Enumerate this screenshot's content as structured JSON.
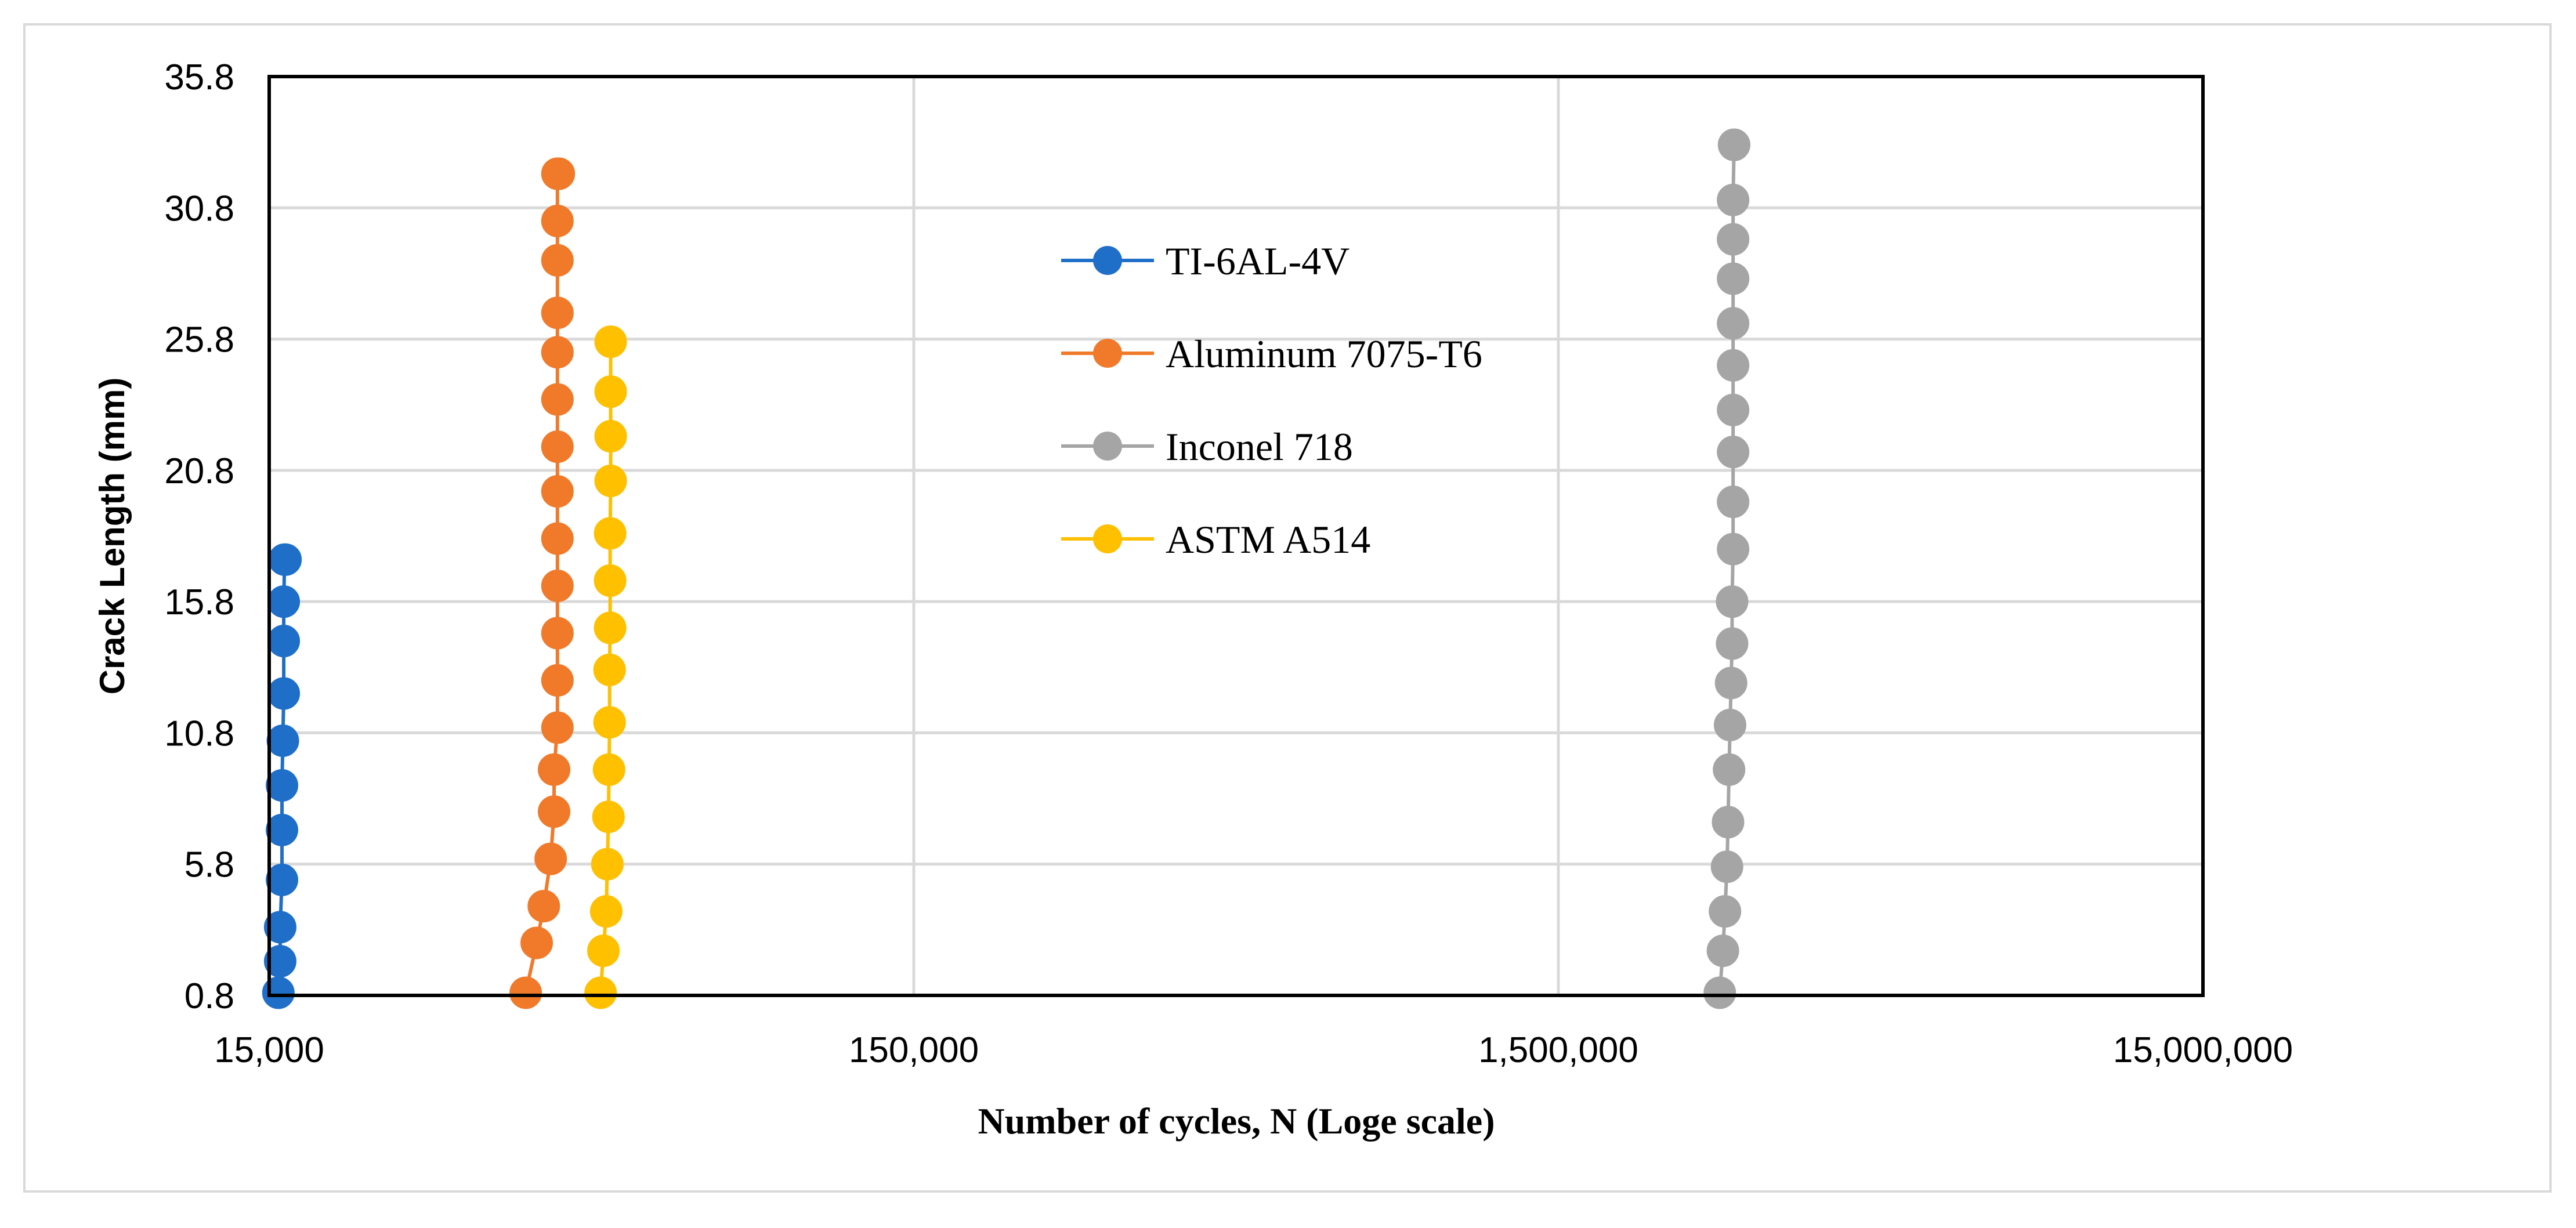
{
  "chart_data": {
    "type": "scatter",
    "title": "",
    "xlabel": "Number of cycles, N (Loge scale)",
    "ylabel": "Crack Length (mm)",
    "x_scale": "log",
    "xlim": [
      15000,
      15000000
    ],
    "ylim": [
      0.8,
      35.8
    ],
    "x_ticks": [
      15000,
      150000,
      1500000,
      15000000
    ],
    "x_tick_labels": [
      "15,000",
      "150,000",
      "1,500,000",
      "15,000,000"
    ],
    "y_ticks": [
      0.8,
      5.8,
      10.8,
      15.8,
      20.8,
      25.8,
      30.8,
      35.8
    ],
    "y_tick_labels": [
      "0.8",
      "5.8",
      "10.8",
      "15.8",
      "20.8",
      "25.8",
      "30.8",
      "35.8"
    ],
    "grid": true,
    "legend_position": "top-center",
    "series": [
      {
        "name": "TI-6AL-4V",
        "color": "#1f6fc9",
        "x": [
          15500,
          15600,
          15600,
          15700,
          15700,
          15700,
          15750,
          15800,
          15800,
          15800,
          15850,
          15900
        ],
        "y": [
          0.9,
          2.1,
          3.4,
          5.2,
          7.1,
          8.8,
          10.5,
          12.3,
          14.3,
          15.8,
          17.4,
          17.4
        ]
      },
      {
        "name": "Aluminum 7075-T6",
        "color": "#f07a2a",
        "x": [
          37500,
          39000,
          40000,
          41000,
          41500,
          41500,
          42000,
          42000,
          42000,
          42000,
          42000,
          42000,
          42000,
          42000,
          42000,
          42000,
          42000,
          42000,
          42000,
          42200,
          42200
        ],
        "y": [
          0.9,
          2.8,
          4.2,
          6.0,
          7.8,
          9.4,
          11.0,
          12.8,
          14.6,
          16.4,
          18.2,
          20.0,
          21.7,
          23.5,
          25.3,
          26.8,
          28.8,
          30.3,
          32.1,
          32.1,
          32.1
        ]
      },
      {
        "name": "Inconel 718",
        "color": "#a5a5a5",
        "x": [
          2670000,
          2700000,
          2720000,
          2740000,
          2750000,
          2760000,
          2770000,
          2780000,
          2790000,
          2790000,
          2800000,
          2800000,
          2800000,
          2800000,
          2800000,
          2800000,
          2800000,
          2800000,
          2800000,
          2810000,
          2810000
        ],
        "y": [
          0.9,
          2.5,
          4.0,
          5.7,
          7.4,
          9.4,
          11.1,
          12.7,
          14.2,
          15.8,
          17.8,
          19.6,
          21.5,
          23.1,
          24.8,
          26.4,
          28.1,
          29.6,
          31.1,
          33.2,
          33.2
        ]
      },
      {
        "name": "ASTM A514",
        "color": "#ffc000",
        "x": [
          49000,
          49500,
          50000,
          50200,
          50400,
          50500,
          50600,
          50600,
          50700,
          50700,
          50700,
          50800,
          50800,
          50800,
          50800
        ],
        "y": [
          0.9,
          2.5,
          4.0,
          5.8,
          7.6,
          9.4,
          11.2,
          13.2,
          14.8,
          16.6,
          18.4,
          20.4,
          22.1,
          23.8,
          25.7
        ]
      }
    ]
  }
}
